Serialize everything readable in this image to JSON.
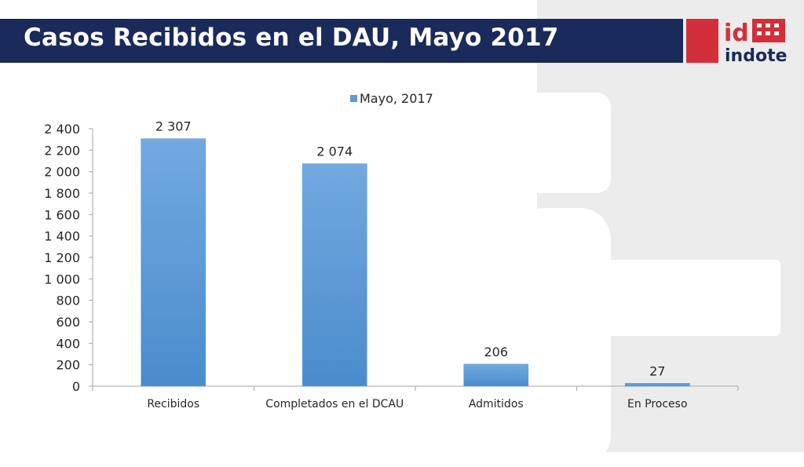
{
  "slide": {
    "title": "Casos Recibidos en el DAU, Mayo 2017"
  },
  "logo": {
    "text": "indotel",
    "mark": "id",
    "colors": {
      "red": "#d32f3a",
      "white": "#ffffff"
    }
  },
  "colors": {
    "title_bar": "#1a2a5a",
    "bar": "#5b9bd5",
    "panel": "#ececec"
  },
  "chart_data": {
    "type": "bar",
    "categories": [
      "Recibidos",
      "Completados en el DCAU",
      "Admitidos",
      "En Proceso"
    ],
    "series": [
      {
        "name": "Mayo, 2017",
        "values": [
          2307,
          2074,
          206,
          27
        ]
      }
    ],
    "data_labels": [
      "2 307",
      "2 074",
      "206",
      "27"
    ],
    "ylim": [
      0,
      2400
    ],
    "yticks": [
      0,
      200,
      400,
      600,
      800,
      1000,
      1200,
      1400,
      1600,
      1800,
      2000,
      2200,
      2400
    ],
    "ytick_labels": [
      "0",
      "200",
      "400",
      "600",
      "800",
      "1 000",
      "1 200",
      "1 400",
      "1 600",
      "1 800",
      "2 000",
      "2 200",
      "2 400"
    ],
    "legend": "top-center",
    "grid": false
  }
}
